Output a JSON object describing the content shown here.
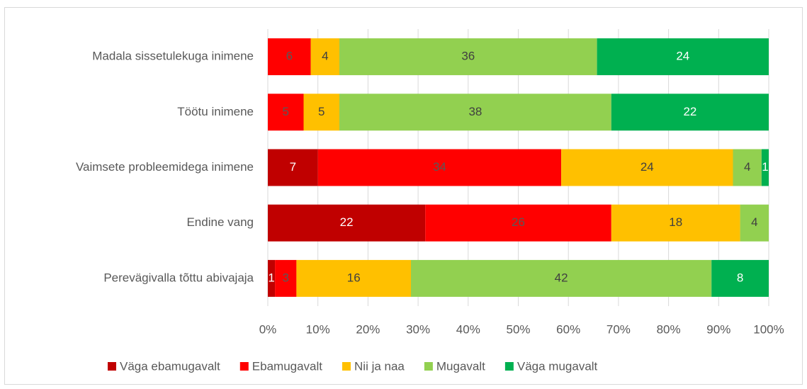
{
  "chart_data": {
    "type": "stacked_bar_100",
    "orientation": "horizontal",
    "categories": [
      "Madala sissetulekuga inimene",
      "Töötu inimene",
      "Vaimsete probleemidega inimene",
      "Endine vang",
      "Perevägivalla tõttu abivajaja"
    ],
    "series": [
      {
        "name": "Väga ebamugavalt",
        "color": "#c00000",
        "label_color": "#ffffff",
        "values": [
          null,
          null,
          7,
          22,
          1
        ]
      },
      {
        "name": "Ebamugavalt",
        "color": "#ff0000",
        "label_color": "#595959",
        "values": [
          6,
          5,
          34,
          26,
          3
        ]
      },
      {
        "name": "Nii ja naa",
        "color": "#ffc000",
        "label_color": "#404040",
        "values": [
          4,
          5,
          24,
          18,
          16
        ]
      },
      {
        "name": "Mugavalt",
        "color": "#92d050",
        "label_color": "#404040",
        "values": [
          36,
          38,
          4,
          4,
          42
        ]
      },
      {
        "name": "Väga mugavalt",
        "color": "#00b050",
        "label_color": "#ffffff",
        "values": [
          24,
          22,
          1,
          null,
          8
        ]
      }
    ],
    "xlim": [
      0,
      100
    ],
    "xticks": [
      {
        "value": 0,
        "label": "0%"
      },
      {
        "value": 10,
        "label": "10%"
      },
      {
        "value": 20,
        "label": "20%"
      },
      {
        "value": 30,
        "label": "30%"
      },
      {
        "value": 40,
        "label": "40%"
      },
      {
        "value": 50,
        "label": "50%"
      },
      {
        "value": 60,
        "label": "60%"
      },
      {
        "value": 70,
        "label": "70%"
      },
      {
        "value": 80,
        "label": "80%"
      },
      {
        "value": 90,
        "label": "90%"
      },
      {
        "value": 100,
        "label": "100%"
      }
    ],
    "grid": true,
    "legend": "bottom"
  }
}
